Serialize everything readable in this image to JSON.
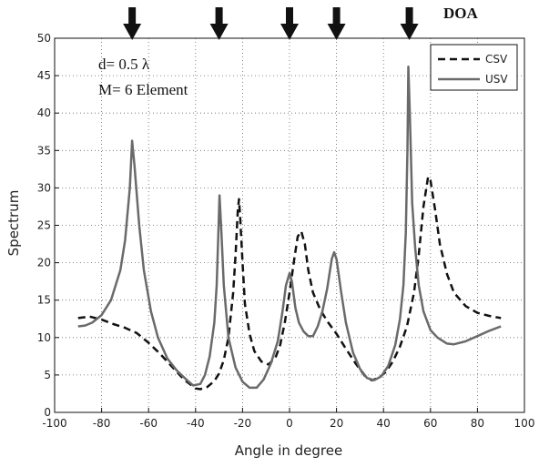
{
  "chart_data": {
    "type": "line",
    "xlabel": "Angle in degree",
    "ylabel": "Spectrum",
    "xlim": [
      -100,
      100
    ],
    "ylim": [
      0,
      50
    ],
    "xticks": [
      -100,
      -80,
      -60,
      -40,
      -20,
      0,
      20,
      40,
      60,
      80,
      100
    ],
    "yticks": [
      0,
      5,
      10,
      15,
      20,
      25,
      30,
      35,
      40,
      45,
      50
    ],
    "grid": true,
    "legend_position": "top-right",
    "annotations": {
      "spacing": "d= 0.5 λ",
      "elements": "M= 6 Element",
      "doa_label": "DOA"
    },
    "doa_angles": [
      -67,
      -30,
      0,
      20,
      51
    ],
    "series": [
      {
        "name": "CSV",
        "style": "dashed",
        "color": "#111111",
        "points": [
          [
            -90,
            12.6
          ],
          [
            -85,
            12.8
          ],
          [
            -80,
            12.4
          ],
          [
            -75,
            11.8
          ],
          [
            -70,
            11.3
          ],
          [
            -65,
            10.6
          ],
          [
            -60,
            9.3
          ],
          [
            -55,
            7.8
          ],
          [
            -50,
            6.1
          ],
          [
            -45,
            4.4
          ],
          [
            -40,
            3.2
          ],
          [
            -38,
            3.1
          ],
          [
            -35,
            3.4
          ],
          [
            -32,
            4.2
          ],
          [
            -30,
            5.2
          ],
          [
            -28,
            7.0
          ],
          [
            -26,
            10.0
          ],
          [
            -24,
            16.0
          ],
          [
            -23,
            21.0
          ],
          [
            -22,
            27.0
          ],
          [
            -21.5,
            28.5
          ],
          [
            -21,
            26.0
          ],
          [
            -20,
            20.0
          ],
          [
            -19,
            14.5
          ],
          [
            -17,
            10.5
          ],
          [
            -15,
            8.2
          ],
          [
            -12,
            6.8
          ],
          [
            -9,
            6.4
          ],
          [
            -6,
            7.3
          ],
          [
            -4,
            9.0
          ],
          [
            -2,
            12.0
          ],
          [
            0,
            16.0
          ],
          [
            2,
            20.5
          ],
          [
            3.5,
            23.5
          ],
          [
            5,
            24.2
          ],
          [
            6.5,
            22.5
          ],
          [
            8,
            19.0
          ],
          [
            10,
            16.0
          ],
          [
            13,
            13.8
          ],
          [
            16,
            12.2
          ],
          [
            20,
            10.5
          ],
          [
            24,
            8.5
          ],
          [
            28,
            6.6
          ],
          [
            32,
            4.9
          ],
          [
            35,
            4.3
          ],
          [
            38,
            4.6
          ],
          [
            41,
            5.4
          ],
          [
            44,
            6.8
          ],
          [
            47,
            8.8
          ],
          [
            50,
            11.5
          ],
          [
            53,
            16.0
          ],
          [
            55,
            21.0
          ],
          [
            57,
            27.5
          ],
          [
            59,
            31.5
          ],
          [
            60,
            31.0
          ],
          [
            62,
            27.0
          ],
          [
            64,
            22.5
          ],
          [
            67,
            18.5
          ],
          [
            70,
            16.0
          ],
          [
            75,
            14.2
          ],
          [
            80,
            13.3
          ],
          [
            85,
            12.9
          ],
          [
            90,
            12.6
          ]
        ]
      },
      {
        "name": "USV",
        "style": "solid",
        "color": "#6a6a6a",
        "points": [
          [
            -90,
            11.5
          ],
          [
            -87,
            11.6
          ],
          [
            -84,
            12.0
          ],
          [
            -80,
            13.0
          ],
          [
            -76,
            15.0
          ],
          [
            -72,
            19.0
          ],
          [
            -70,
            23.0
          ],
          [
            -68,
            30.0
          ],
          [
            -67,
            36.3
          ],
          [
            -66,
            33.0
          ],
          [
            -64,
            25.0
          ],
          [
            -62,
            19.0
          ],
          [
            -59,
            13.5
          ],
          [
            -56,
            10.0
          ],
          [
            -52,
            7.2
          ],
          [
            -48,
            5.6
          ],
          [
            -44,
            4.4
          ],
          [
            -41,
            3.6
          ],
          [
            -38,
            3.8
          ],
          [
            -36,
            5.0
          ],
          [
            -34,
            7.5
          ],
          [
            -32,
            12.0
          ],
          [
            -31,
            17.0
          ],
          [
            -30.2,
            25.0
          ],
          [
            -29.8,
            29.0
          ],
          [
            -29,
            24.0
          ],
          [
            -28,
            17.0
          ],
          [
            -26,
            10.0
          ],
          [
            -23,
            6.0
          ],
          [
            -20,
            4.1
          ],
          [
            -17,
            3.3
          ],
          [
            -14,
            3.3
          ],
          [
            -11,
            4.4
          ],
          [
            -8,
            6.5
          ],
          [
            -5,
            9.5
          ],
          [
            -3,
            13.5
          ],
          [
            -1.5,
            17.0
          ],
          [
            0,
            18.6
          ],
          [
            1,
            17.5
          ],
          [
            2.5,
            14.0
          ],
          [
            4,
            12.0
          ],
          [
            6,
            10.8
          ],
          [
            8,
            10.2
          ],
          [
            10,
            10.2
          ],
          [
            12,
            11.5
          ],
          [
            14,
            13.5
          ],
          [
            16,
            16.5
          ],
          [
            18,
            20.5
          ],
          [
            19,
            21.4
          ],
          [
            20,
            20.5
          ],
          [
            22,
            16.0
          ],
          [
            24,
            12.0
          ],
          [
            27,
            8.0
          ],
          [
            30,
            5.8
          ],
          [
            33,
            4.6
          ],
          [
            36,
            4.3
          ],
          [
            39,
            4.8
          ],
          [
            42,
            6.2
          ],
          [
            45,
            9.0
          ],
          [
            47,
            12.5
          ],
          [
            48.5,
            17.0
          ],
          [
            49.5,
            24.0
          ],
          [
            50.2,
            35.0
          ],
          [
            50.6,
            46.2
          ],
          [
            51.2,
            40.0
          ],
          [
            52.2,
            28.0
          ],
          [
            53.5,
            22.0
          ],
          [
            55,
            17.0
          ],
          [
            57,
            13.5
          ],
          [
            60,
            11.0
          ],
          [
            63,
            10.0
          ],
          [
            67,
            9.2
          ],
          [
            70,
            9.1
          ],
          [
            75,
            9.5
          ],
          [
            80,
            10.2
          ],
          [
            85,
            10.9
          ],
          [
            90,
            11.5
          ]
        ]
      }
    ]
  }
}
